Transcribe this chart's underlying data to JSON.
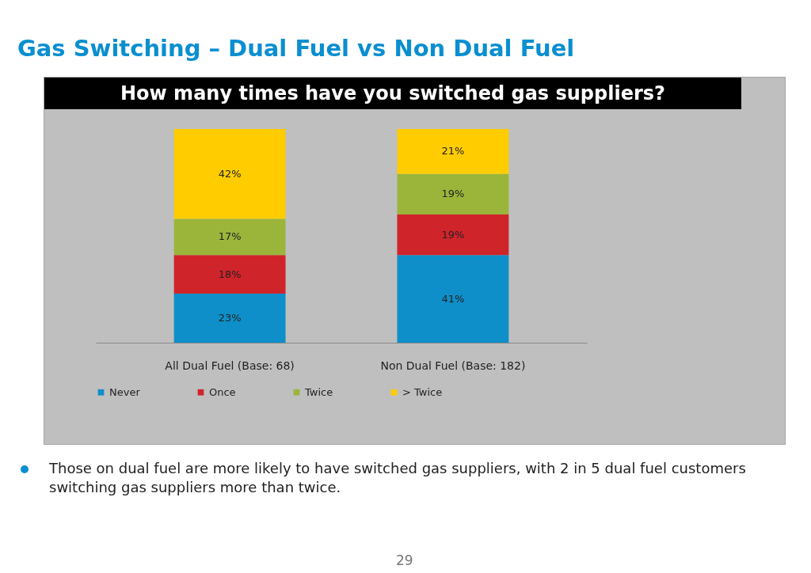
{
  "chart_data": {
    "type": "bar",
    "stacked": true,
    "title": "Gas Switching – Dual Fuel vs Non Dual Fuel",
    "subtitle": "How many times have you switched gas suppliers?",
    "categories": [
      "All Dual Fuel (Base: 68)",
      "Non Dual Fuel (Base: 182)"
    ],
    "series": [
      {
        "name": "Never",
        "color": "#0f8fc9",
        "values": [
          23,
          41
        ],
        "value_labels": [
          "23%",
          "41%"
        ]
      },
      {
        "name": "Once",
        "color": "#d0242b",
        "values": [
          18,
          19
        ],
        "value_labels": [
          "18%",
          "19%"
        ]
      },
      {
        "name": "Twice",
        "color": "#9bb53b",
        "values": [
          17,
          19
        ],
        "value_labels": [
          "17%",
          "19%"
        ]
      },
      {
        "name": "> Twice",
        "color": "#ffcc00",
        "values": [
          42,
          21
        ],
        "value_labels": [
          "42%",
          "21%"
        ]
      }
    ],
    "legend": "bottom",
    "grid": false,
    "annotations": [
      "Those on dual fuel are more likely to have switched gas suppliers, with 2 in 5 dual fuel customers switching gas suppliers more than twice.",
      "29"
    ]
  }
}
